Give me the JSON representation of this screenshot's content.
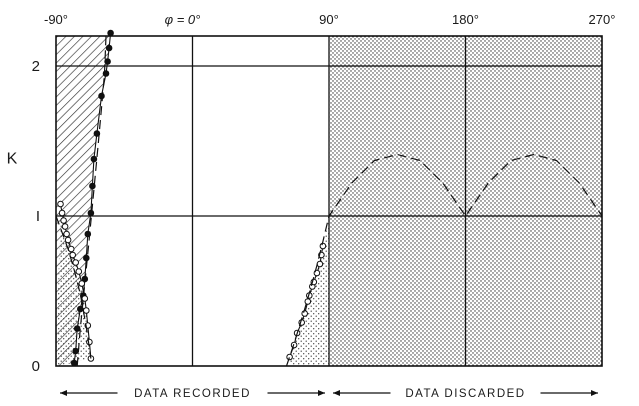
{
  "chart_data": {
    "type": "line",
    "title": "",
    "xlabel": "",
    "ylabel": "K",
    "x_unit": "degrees (phase angle φ)",
    "xlim": [
      -90,
      270
    ],
    "ylim": [
      0,
      2.2
    ],
    "x_ticks": [
      {
        "value": -90,
        "label": "-90°"
      },
      {
        "value": 90,
        "label": "90°"
      },
      {
        "value": 180,
        "label": "180°"
      },
      {
        "value": 270,
        "label": "270°"
      }
    ],
    "y_ticks": [
      {
        "value": 0,
        "label": "0"
      },
      {
        "value": 1,
        "label": "I"
      },
      {
        "value": 2,
        "label": "2"
      }
    ],
    "phi_marker": {
      "value": 0,
      "label": "φ = 0°"
    },
    "grid": true,
    "regions": {
      "recorded": {
        "label": "DATA RECORDED",
        "x_range": [
          -90,
          90
        ]
      },
      "discarded": {
        "label": "DATA DISCARDED",
        "x_range": [
          90,
          270
        ]
      }
    },
    "series": [
      {
        "marker": "filled-circle",
        "style": "solid",
        "x": [
          -78,
          -77,
          -76,
          -74,
          -72,
          -71,
          -70,
          -69,
          -67,
          -66,
          -65,
          -63,
          -60,
          -57,
          -56,
          -55,
          -54
        ],
        "y": [
          0.02,
          0.1,
          0.25,
          0.38,
          0.47,
          0.58,
          0.72,
          0.88,
          1.02,
          1.2,
          1.38,
          1.55,
          1.8,
          1.95,
          2.03,
          2.12,
          2.22
        ]
      },
      {
        "marker": "open-circle",
        "style": "solid",
        "x": [
          -87,
          -86,
          -85,
          -84,
          -83,
          -82,
          -80,
          -79,
          -77,
          -75,
          -73,
          -71,
          -70,
          -69,
          -68,
          -67
        ],
        "y": [
          1.08,
          1.02,
          0.97,
          0.93,
          0.88,
          0.84,
          0.78,
          0.74,
          0.69,
          0.63,
          0.55,
          0.45,
          0.37,
          0.27,
          0.16,
          0.05
        ]
      },
      {
        "marker": "open-circle",
        "style": "solid",
        "x": [
          64,
          67,
          69,
          72,
          74,
          76,
          77,
          79,
          80,
          82,
          84,
          85,
          86
        ],
        "y": [
          0.06,
          0.14,
          0.22,
          0.29,
          0.35,
          0.43,
          0.47,
          0.53,
          0.56,
          0.62,
          0.68,
          0.74,
          0.8
        ]
      },
      {
        "marker": "none",
        "style": "dashed",
        "x": [
          -76,
          -74,
          -72,
          -70,
          -68,
          -66,
          -64,
          -62,
          -60,
          -58,
          -57
        ],
        "y": [
          0.0,
          0.25,
          0.45,
          0.65,
          0.86,
          1.07,
          1.28,
          1.5,
          1.72,
          1.95,
          2.2
        ]
      },
      {
        "marker": "none",
        "style": "dashed",
        "x": [
          -90,
          -86,
          -82,
          -78,
          -74,
          -70,
          -67
        ],
        "y": [
          1.0,
          0.89,
          0.78,
          0.64,
          0.48,
          0.26,
          0.05
        ]
      },
      {
        "marker": "none",
        "style": "dashed",
        "x": [
          62,
          66,
          70,
          74,
          78,
          82,
          86,
          90,
          105,
          120,
          135,
          150,
          165,
          180,
          195,
          210,
          225,
          240,
          255,
          270
        ],
        "y": [
          0.0,
          0.12,
          0.25,
          0.38,
          0.52,
          0.67,
          0.83,
          1.0,
          1.22,
          1.37,
          1.41,
          1.37,
          1.22,
          1.0,
          1.22,
          1.37,
          1.41,
          1.37,
          1.22,
          1.0
        ]
      }
    ]
  }
}
